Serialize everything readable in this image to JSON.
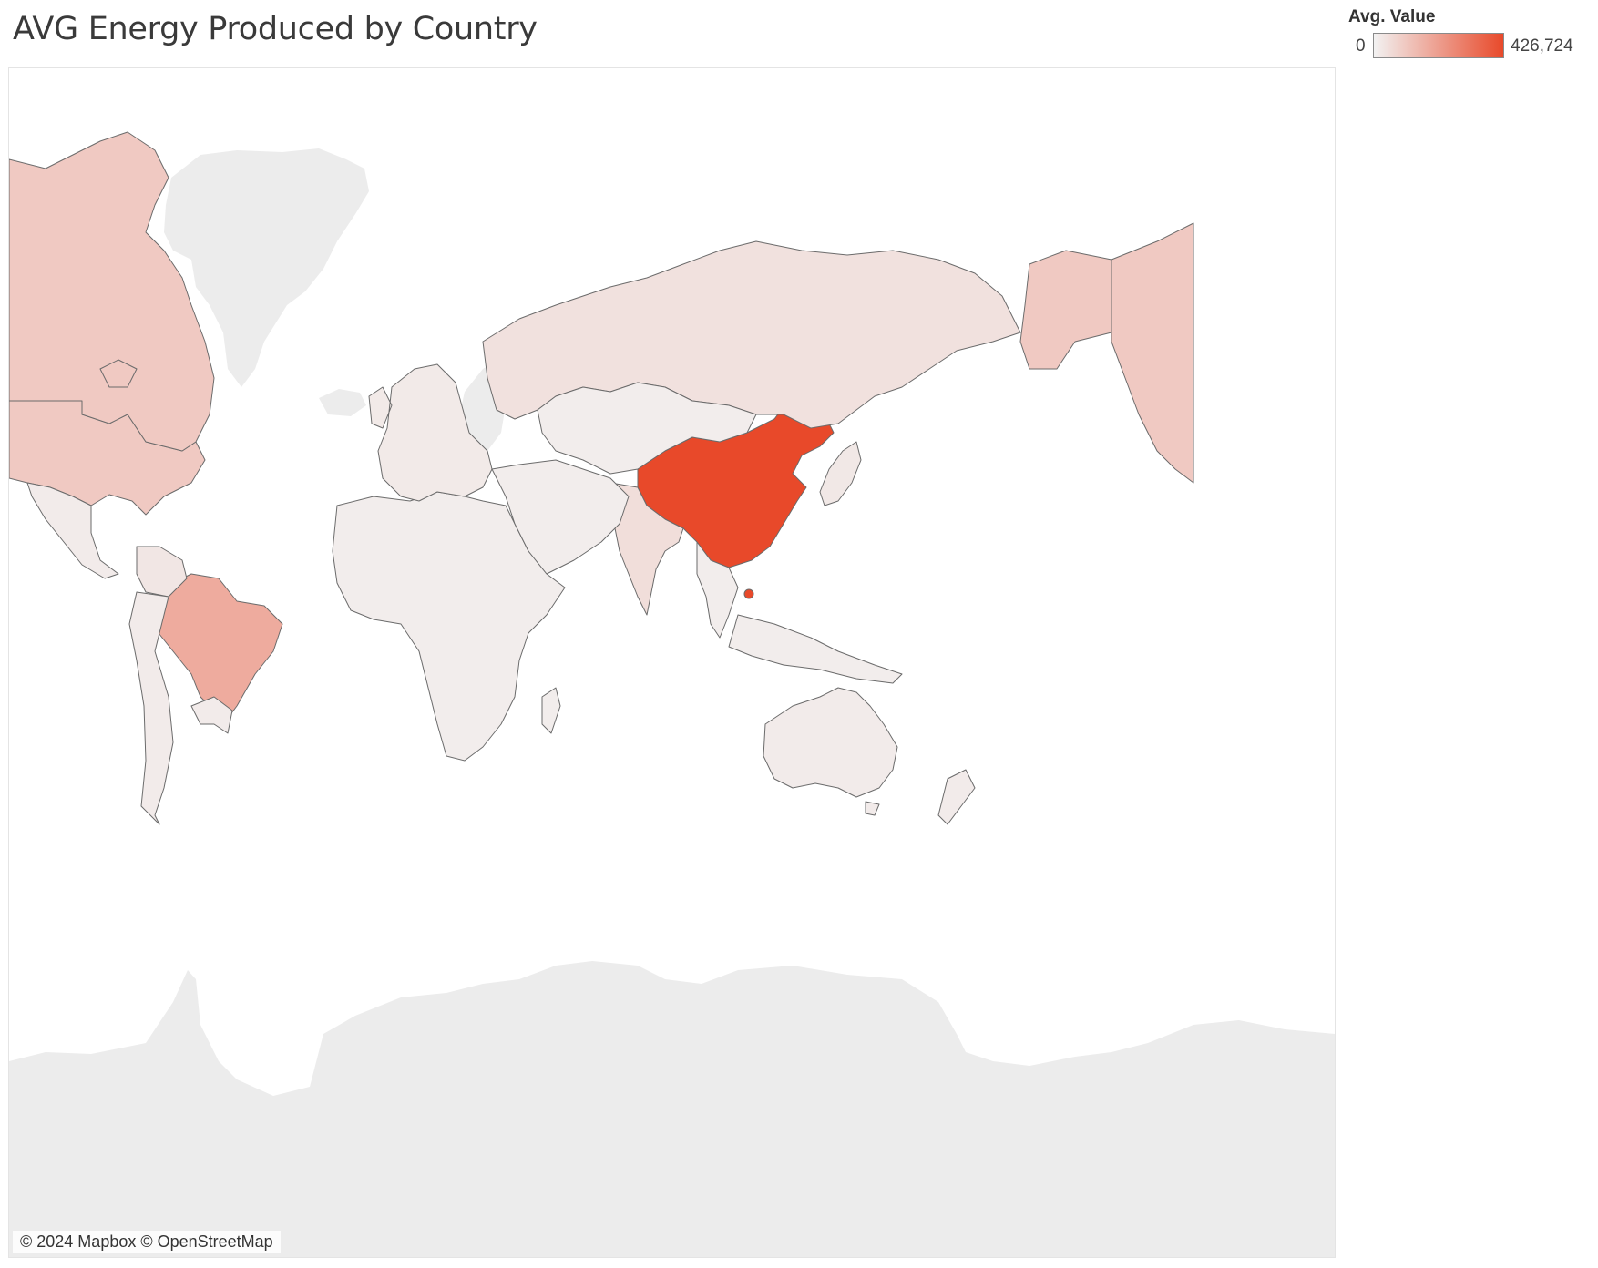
{
  "title": "AVG Energy Produced by Country",
  "legend": {
    "title": "Avg. Value",
    "min_label": "0",
    "max_label": "426,724",
    "min_value": 0,
    "max_value": 426724,
    "color_low": "#f2f2f2",
    "color_high": "#e8492a"
  },
  "attribution": "© 2024 Mapbox © OpenStreetMap",
  "map": {
    "projection": "mercator",
    "no_data_color": "#ececec",
    "regions": [
      {
        "name": "China",
        "intensity": 1.0
      },
      {
        "name": "Brazil",
        "intensity": 0.42
      },
      {
        "name": "United States",
        "intensity": 0.24
      },
      {
        "name": "Canada",
        "intensity": 0.24
      },
      {
        "name": "India",
        "intensity": 0.12
      },
      {
        "name": "Russia",
        "intensity": 0.1
      },
      {
        "name": "Colombia",
        "intensity": 0.07
      },
      {
        "name": "Australia",
        "intensity": 0.04
      },
      {
        "name": "Africa",
        "intensity": 0.03
      },
      {
        "name": "South America",
        "intensity": 0.04
      },
      {
        "name": "Middle East",
        "intensity": 0.03
      },
      {
        "name": "Central Asia",
        "intensity": 0.03
      },
      {
        "name": "Southeast Asia",
        "intensity": 0.03
      },
      {
        "name": "Europe",
        "intensity": 0.05
      },
      {
        "name": "Mexico",
        "intensity": 0.04
      },
      {
        "name": "Japan",
        "intensity": 0.06
      },
      {
        "name": "Greenland",
        "intensity": -1
      },
      {
        "name": "Antarctica",
        "intensity": -1
      }
    ]
  }
}
